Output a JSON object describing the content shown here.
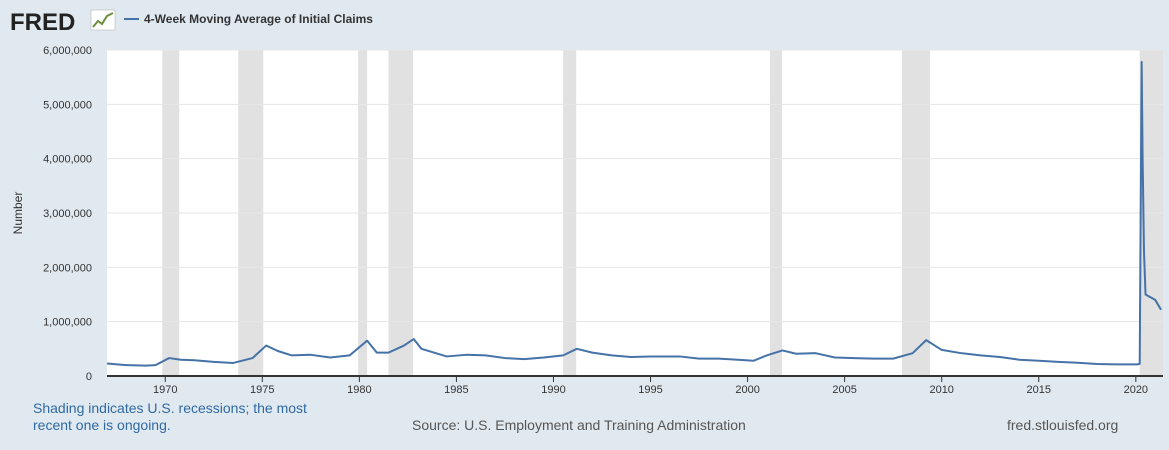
{
  "chart_data": {
    "type": "line",
    "logo": "FRED",
    "title": "4-Week Moving Average of Initial Claims",
    "y_label": "Number",
    "note": "Shading indicates U.S. recessions; the most recent one is ongoing.",
    "source": "Source: U.S. Employment and Training Administration",
    "site": "fred.stlouisfed.org",
    "xlim": [
      1967,
      2021.4
    ],
    "xticks": [
      1970,
      1975,
      1980,
      1985,
      1990,
      1995,
      2000,
      2005,
      2010,
      2015,
      2020
    ],
    "ylim": [
      0,
      6000000
    ],
    "yticks": [
      0,
      {
        "value": 1000000,
        "label": "1,000,000"
      },
      {
        "value": 2000000,
        "label": "2,000,000"
      },
      {
        "value": 3000000,
        "label": "3,000,000"
      },
      {
        "value": 4000000,
        "label": "4,000,000"
      },
      {
        "value": 5000000,
        "label": "5,000,000"
      },
      {
        "value": 6000000,
        "label": "6,000,000"
      }
    ],
    "grid": true,
    "recession_color": "#e1e1e1",
    "recessions": [
      [
        1969.85,
        1970.72
      ],
      [
        1973.76,
        1975.05
      ],
      [
        1979.94,
        1980.4
      ],
      [
        1981.5,
        1982.77
      ],
      [
        1990.5,
        1991.17
      ],
      [
        2001.15,
        2001.77
      ],
      [
        2007.95,
        2009.4
      ],
      [
        2020.2,
        2021.4
      ]
    ],
    "series": [
      {
        "name": "4-Week Moving Average of Initial Claims",
        "color": "#4572a7",
        "x": [
          1967.0,
          1968.0,
          1969.0,
          1969.5,
          1970.2,
          1970.8,
          1971.5,
          1972.5,
          1973.5,
          1974.5,
          1975.2,
          1975.8,
          1976.5,
          1977.5,
          1978.5,
          1979.5,
          1980.4,
          1980.9,
          1981.5,
          1982.3,
          1982.8,
          1983.2,
          1984.5,
          1985.5,
          1986.5,
          1987.5,
          1988.5,
          1989.5,
          1990.5,
          1991.2,
          1992.0,
          1993.0,
          1994.0,
          1995.0,
          1996.5,
          1997.5,
          1998.5,
          1999.5,
          2000.3,
          2001.0,
          2001.8,
          2002.5,
          2003.5,
          2004.5,
          2005.5,
          2006.5,
          2007.5,
          2008.5,
          2009.2,
          2010.0,
          2011.0,
          2012.0,
          2013.0,
          2014.0,
          2015.0,
          2016.0,
          2017.0,
          2018.0,
          2019.0,
          2020.1,
          2020.2,
          2020.25,
          2020.3,
          2020.35,
          2020.42,
          2020.5,
          2021.0,
          2021.3
        ],
        "values": [
          230000,
          200000,
          190000,
          200000,
          330000,
          300000,
          290000,
          260000,
          240000,
          330000,
          560000,
          460000,
          380000,
          390000,
          340000,
          380000,
          650000,
          430000,
          430000,
          560000,
          680000,
          500000,
          360000,
          390000,
          380000,
          330000,
          310000,
          340000,
          380000,
          500000,
          430000,
          380000,
          350000,
          360000,
          360000,
          320000,
          320000,
          300000,
          280000,
          380000,
          470000,
          410000,
          420000,
          340000,
          330000,
          320000,
          320000,
          420000,
          660000,
          480000,
          420000,
          380000,
          350000,
          300000,
          280000,
          260000,
          245000,
          220000,
          215000,
          215000,
          225000,
          3000000,
          5780000,
          4000000,
          2300000,
          1500000,
          1400000,
          1220000
        ]
      }
    ]
  }
}
